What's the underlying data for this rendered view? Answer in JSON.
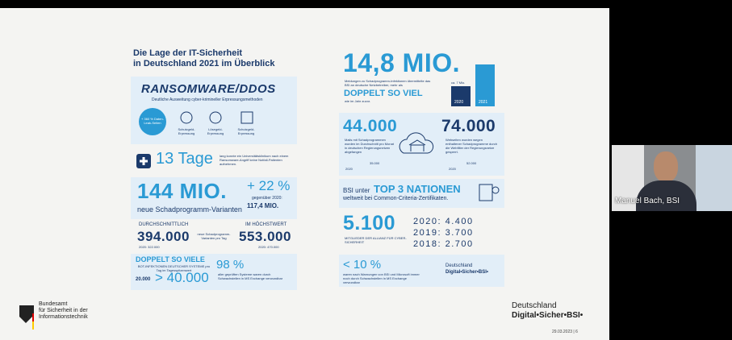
{
  "slide": {
    "title": [
      "Die Lage der IT-Sicherheit",
      "in Deutschland 2021 im Überblick"
    ],
    "left": {
      "ransomware": {
        "heading": "RANSOMWARE/DDOS",
        "subtitle": "Deutliche Ausweitung cyber-krimineller Erpressungsmethoden",
        "badge": "+ 360 % Daten-Leak-Seiten",
        "icons": [
          "Schutzgeld-Erpressung",
          "Lösegeld-Erpressung",
          "Schutzgeld-Erpressung"
        ]
      },
      "clinic": {
        "value": "13 Tage",
        "text": "lang konnte ein Universitätsklinikum nach einem Ransomware-Angriff keine Notfall-Patienten aufnehmen."
      },
      "variants": {
        "value": "144 MIO.",
        "label": "neue Schadprogramm-Varianten",
        "change": "+ 22 %",
        "compare": "gegenüber 2020:",
        "compare_value": "117,4 MIO."
      },
      "daily": {
        "avg_label": "DURCHSCHNITTLICH",
        "avg": "394.000",
        "avg_prev": "2020: 322.000",
        "middle": "neue Schadprogramm-Varianten pro Tag",
        "max_label": "IM HÖCHSTWERT",
        "max": "553.000",
        "max_prev": "2020: 470.000"
      },
      "bots": {
        "heading": "DOPPELT SO VIELE",
        "text": "BOT-INFEKTIONEN DEUTSCHER SYSTEME pro Tag im Tagesspitzenwert",
        "from": "20.000",
        "to": "> 40.000"
      },
      "exchange": {
        "value": "98 %",
        "text": "aller geprüften Systeme waren durch Schwachstellen in MS Exchange verwundbar"
      }
    },
    "right": {
      "reports": {
        "value": "14,8 MIO.",
        "text": "Meldungen zu Schadprogramm-Infektionen übermittelte das BSI an deutsche Netzbetreiber, mehr als",
        "emphasis": "DOPPELT SO VIEL",
        "tail": "wie im Jahr zuvor.",
        "bars": [
          {
            "year": "2020",
            "value": 7,
            "value_label": "ca. 7 Mio."
          },
          {
            "year": "2021",
            "value": 14.8
          }
        ]
      },
      "mails": {
        "value": "44.000",
        "text": "Mails mit Schadprogrammen wurden im Durchschnitt pro Monat in deutschen Regierungsnetzen abgefangen",
        "prev_year": "2020",
        "prev": "35.000"
      },
      "websites": {
        "value": "74.000",
        "text": "Webseiten wurden wegen enthaltener Schadprogramme durch die Webfilter der Regierungsnetze gesperrt.",
        "prev_year": "2020",
        "prev": "52.000"
      },
      "cc": {
        "prefix": "BSI unter",
        "value": "TOP 3 NATIONEN",
        "text": "weltweit bei Common-Criteria-Zertifikaten."
      },
      "alliance": {
        "value": "5.100",
        "text": "MITGLIEDER DER ALLIANZ FÜR CYBER-SICHERHEIT",
        "history": [
          "2020: 4.400",
          "2019: 3.700",
          "2018: 2.700"
        ]
      },
      "exchange": {
        "value": "< 10 %",
        "text": "waren nach Warnungen von BSI und Microsoft immer noch durch Schwachstellen in MS Exchange verwundbar",
        "brand": [
          "Deutschland",
          "Digital•Sicher•BSI•"
        ]
      }
    },
    "footer": {
      "org": [
        "Bundesamt",
        "für Sicherheit in der",
        "Informationstechnik"
      ],
      "brand": [
        "Deutschland",
        "Digital•Sicher•BSI•"
      ],
      "page": "29.03.2023 | 6"
    }
  },
  "video": {
    "name": "Manuel Bach, BSI"
  }
}
